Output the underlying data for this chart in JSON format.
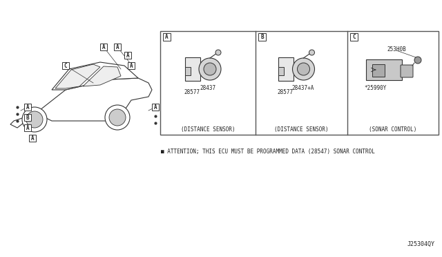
{
  "bg_color": "#ffffff",
  "fig_width": 6.4,
  "fig_height": 3.72,
  "dpi": 100,
  "diagram_code": "J25304QY",
  "attention_text": "■ ATTENTION; THIS ECU MUST BE PROGRAMMED DATA (28547) SONAR CONTROL",
  "panel_A_label": "A",
  "panel_B_label": "B",
  "panel_C_label": "C",
  "panel_A_parts": [
    "28437",
    "28577"
  ],
  "panel_A_caption": "(DISTANCE SENSOR)",
  "panel_B_parts": [
    "28437+A",
    "28577"
  ],
  "panel_B_caption": "(DISTANCE SENSOR)",
  "panel_C_parts": [
    "253H0B",
    "*25990Y"
  ],
  "panel_C_caption": "(SONAR CONTROL)",
  "car_labels": [
    "A",
    "A",
    "A",
    "A",
    "A",
    "B",
    "C"
  ],
  "border_color": "#555555",
  "text_color": "#222222",
  "line_color": "#333333"
}
